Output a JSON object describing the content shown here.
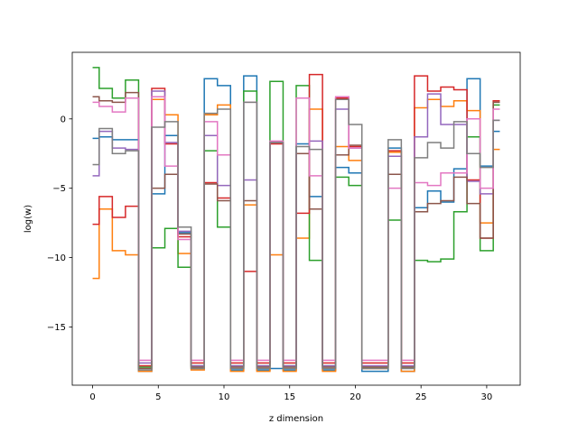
{
  "chart_data": {
    "type": "line",
    "drawstyle": "steps-mid",
    "title": "",
    "xlabel": "z dimension",
    "ylabel": "log(w)",
    "xlim": [
      -1.55,
      32.55
    ],
    "ylim": [
      -19.2,
      4.8
    ],
    "xticks": [
      0,
      5,
      10,
      15,
      20,
      25,
      30
    ],
    "yticks": [
      -15,
      -10,
      -5,
      0
    ],
    "ytick_labels": [
      "−15",
      "−10",
      "−5",
      "0"
    ],
    "grid": false,
    "legend": "none",
    "x": [
      0,
      1,
      2,
      3,
      4,
      5,
      6,
      7,
      8,
      9,
      10,
      11,
      12,
      13,
      14,
      15,
      16,
      17,
      18,
      19,
      20,
      21,
      22,
      23,
      24,
      25,
      26,
      27,
      28,
      29,
      30,
      31
    ],
    "series": [
      {
        "color": "#1f77b4",
        "values": [
          -1.4,
          -1.3,
          -1.5,
          -1.5,
          -18.2,
          -5.4,
          -1.2,
          -8.2,
          -18.0,
          2.9,
          2.4,
          -18.1,
          3.1,
          -18.1,
          -18.0,
          -18.1,
          -1.8,
          -5.6,
          -18.1,
          -3.5,
          -3.9,
          -18.2,
          -18.2,
          -2.1,
          -18.2,
          -6.4,
          -5.2,
          -6.0,
          -3.6,
          2.9,
          -3.4,
          -0.9
        ]
      },
      {
        "color": "#ff7f0e",
        "values": [
          -11.5,
          -6.5,
          -9.5,
          -9.8,
          -18.2,
          1.4,
          0.3,
          -9.7,
          -18.1,
          0.3,
          1.0,
          -18.2,
          -6.2,
          -18.2,
          -9.8,
          -18.2,
          -8.6,
          0.7,
          -18.2,
          -2.0,
          -3.0,
          -18.0,
          -18.0,
          -2.4,
          -18.2,
          0.8,
          1.4,
          0.9,
          1.3,
          0.6,
          -7.5,
          -2.2
        ]
      },
      {
        "color": "#2ca02c",
        "values": [
          3.7,
          2.2,
          1.5,
          2.8,
          -17.9,
          -9.3,
          -7.9,
          -10.7,
          -17.8,
          -2.3,
          -7.8,
          -17.8,
          2.0,
          -17.8,
          2.7,
          -17.8,
          2.4,
          -10.2,
          -17.8,
          -4.2,
          -4.8,
          -17.9,
          -17.9,
          -7.3,
          -17.9,
          -10.2,
          -10.3,
          -10.1,
          -6.7,
          -1.3,
          -9.5,
          1.0
        ]
      },
      {
        "color": "#d62728",
        "values": [
          -7.6,
          -5.6,
          -7.1,
          -6.3,
          -17.8,
          2.2,
          -1.8,
          -8.5,
          -17.6,
          -4.6,
          -5.7,
          -17.6,
          -11.0,
          -17.6,
          -1.8,
          -17.6,
          -6.8,
          3.2,
          -17.6,
          1.5,
          -2.0,
          -17.6,
          -17.6,
          -2.3,
          -17.6,
          3.1,
          2.0,
          2.3,
          2.1,
          -4.4,
          -8.6,
          1.3
        ]
      },
      {
        "color": "#9467bd",
        "values": [
          -4.1,
          -0.9,
          -2.1,
          -2.2,
          -17.6,
          2.0,
          -1.7,
          -8.1,
          -17.8,
          -1.2,
          -4.8,
          -17.8,
          -4.4,
          -17.8,
          -1.7,
          -17.8,
          -2.5,
          -1.6,
          -17.8,
          0.7,
          -2.1,
          -17.8,
          -17.8,
          -2.7,
          -17.8,
          -1.3,
          1.8,
          -0.4,
          -0.4,
          -4.5,
          -5.4,
          -0.1
        ]
      },
      {
        "color": "#8c564b",
        "values": [
          1.6,
          1.3,
          1.2,
          1.9,
          -18.0,
          -5.0,
          -4.0,
          -8.3,
          -17.9,
          -4.7,
          -5.9,
          -17.9,
          -5.9,
          -17.9,
          -1.7,
          -17.9,
          -2.5,
          -6.5,
          -17.9,
          -2.6,
          -1.9,
          -17.9,
          -17.9,
          -4.0,
          -17.9,
          -6.7,
          -6.1,
          -5.9,
          -4.2,
          -6.1,
          -8.6,
          1.2
        ]
      },
      {
        "color": "#e377c2",
        "values": [
          1.2,
          0.9,
          0.5,
          1.5,
          -17.4,
          1.6,
          -3.4,
          -8.7,
          -17.4,
          -0.2,
          -2.6,
          -17.4,
          1.2,
          -17.4,
          -1.6,
          -17.4,
          1.5,
          -4.1,
          -17.4,
          1.6,
          -2.1,
          -17.4,
          -17.4,
          -5.0,
          -17.4,
          -4.6,
          -4.8,
          -3.9,
          -3.9,
          0.0,
          -5.0,
          0.7
        ]
      },
      {
        "color": "#7f7f7f",
        "values": [
          -3.3,
          -0.7,
          -2.5,
          -2.3,
          -18.1,
          -0.6,
          -0.2,
          -7.8,
          -18.0,
          0.4,
          0.7,
          -18.0,
          1.2,
          -18.0,
          -1.7,
          -18.0,
          -2.0,
          -2.2,
          -18.0,
          1.4,
          -0.4,
          -18.0,
          -18.0,
          -1.5,
          -18.0,
          -2.8,
          -1.7,
          -2.1,
          -0.2,
          -2.5,
          -3.5,
          -0.1
        ]
      }
    ]
  }
}
